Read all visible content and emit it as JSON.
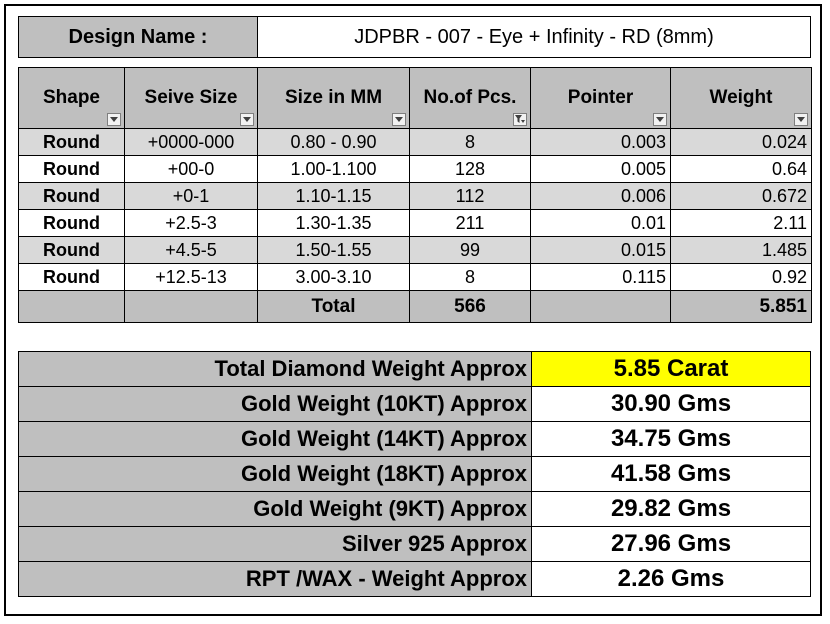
{
  "design": {
    "label": "Design Name :",
    "value": "JDPBR - 007 -  Eye + Infinity - RD (8mm)"
  },
  "columns": [
    "Shape",
    "Seive Size",
    "Size in MM",
    "No.of Pcs.",
    "Pointer",
    "Weight"
  ],
  "rows": [
    {
      "shape": "Round",
      "seive": "+0000-000",
      "size_mm": "0.80 - 0.90",
      "pcs": "8",
      "pointer": "0.003",
      "weight": "0.024"
    },
    {
      "shape": "Round",
      "seive": "+00-0",
      "size_mm": "1.00-1.100",
      "pcs": "128",
      "pointer": "0.005",
      "weight": "0.64"
    },
    {
      "shape": "Round",
      "seive": "+0-1",
      "size_mm": "1.10-1.15",
      "pcs": "112",
      "pointer": "0.006",
      "weight": "0.672"
    },
    {
      "shape": "Round",
      "seive": "+2.5-3",
      "size_mm": "1.30-1.35",
      "pcs": "211",
      "pointer": "0.01",
      "weight": "2.11"
    },
    {
      "shape": "Round",
      "seive": "+4.5-5",
      "size_mm": "1.50-1.55",
      "pcs": "99",
      "pointer": "0.015",
      "weight": "1.485"
    },
    {
      "shape": "Round",
      "seive": "+12.5-13",
      "size_mm": "3.00-3.10",
      "pcs": "8",
      "pointer": "0.115",
      "weight": "0.92"
    }
  ],
  "totals": {
    "label": "Total",
    "pcs": "566",
    "weight": "5.851"
  },
  "summary": [
    {
      "label": "Total Diamond Weight Approx",
      "value": "5.85 Carat",
      "highlight": true
    },
    {
      "label": "Gold Weight (10KT) Approx",
      "value": "30.90 Gms"
    },
    {
      "label": "Gold Weight (14KT) Approx",
      "value": "34.75 Gms"
    },
    {
      "label": "Gold Weight (18KT) Approx",
      "value": "41.58 Gms"
    },
    {
      "label": "Gold Weight (9KT) Approx",
      "value": "29.82 Gms"
    },
    {
      "label": "Silver 925 Approx",
      "value": "27.96 Gms"
    },
    {
      "label": "RPT /WAX - Weight Approx",
      "value": "2.26 Gms"
    }
  ],
  "colors": {
    "header_grey": "#bfbfbf",
    "row_grey": "#d9d9d9",
    "highlight": "#ffff00"
  },
  "icons": {
    "filter": "dropdown-arrow-icon",
    "filter_active": "filter-funnel-icon"
  }
}
